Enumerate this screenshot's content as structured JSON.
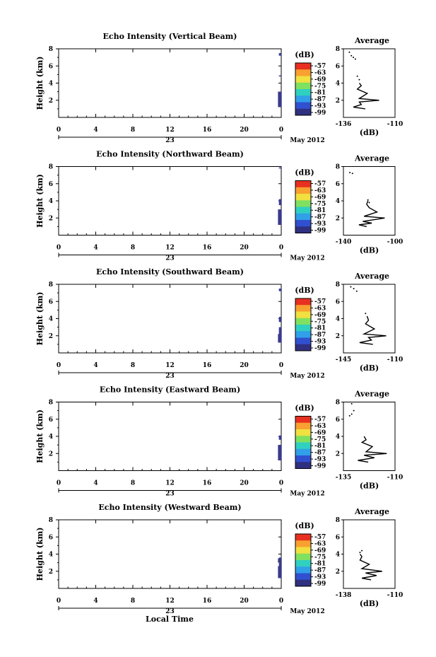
{
  "common": {
    "x_ticks": [
      "0",
      "4",
      "8",
      "12",
      "16",
      "20",
      "0"
    ],
    "y_ticks": [
      "2",
      "4",
      "6",
      "8"
    ],
    "date_day": "23",
    "month_year": "May 2012",
    "ylabel": "Height (km)",
    "xlabel": "Local Time",
    "avg_title": "Average",
    "db_unit": "(dB)",
    "colorbar_ticks": [
      "-57",
      "-63",
      "-69",
      "-75",
      "-81",
      "-87",
      "-93",
      "-99"
    ],
    "colorbar_colors": [
      "#e83020",
      "#f8a030",
      "#f0e040",
      "#80e060",
      "#30d0c0",
      "#30a0e8",
      "#3050d0",
      "#303080"
    ],
    "data_color": "#3a3a8c"
  },
  "chart_data": [
    {
      "type": "heatmap",
      "title": "Echo Intensity (Vertical Beam)",
      "ylim": [
        0,
        8
      ],
      "echo_columns": [
        {
          "time_h": 23.8,
          "segments": [
            [
              1.2,
              3.0
            ]
          ]
        },
        {
          "time_h": 23.9,
          "segments": [
            [
              1.2,
              3.0
            ],
            [
              7.2,
              7.5
            ],
            [
              4.8,
              4.9
            ]
          ]
        }
      ],
      "avg_xlim": [
        -136,
        -110
      ],
      "avg_xticks": [
        "-136",
        "-110"
      ],
      "avg_profile": [
        [
          -125,
          1.0
        ],
        [
          -131,
          1.2
        ],
        [
          -127,
          1.5
        ],
        [
          -128,
          1.8
        ],
        [
          -118,
          2.0
        ],
        [
          -128,
          2.2
        ],
        [
          -124,
          2.8
        ],
        [
          -129,
          3.3
        ],
        [
          -127,
          3.7
        ],
        [
          -128,
          4.0
        ]
      ],
      "avg_points": [
        [
          -133,
          7.6
        ],
        [
          -132,
          7.2
        ],
        [
          -131,
          7.0
        ],
        [
          -130,
          6.8
        ],
        [
          -129,
          4.8
        ],
        [
          -128,
          4.4
        ]
      ]
    },
    {
      "type": "heatmap",
      "title": "Echo Intensity (Northward Beam)",
      "ylim": [
        0,
        8
      ],
      "echo_columns": [
        {
          "time_h": 23.8,
          "segments": [
            [
              1.2,
              3.0
            ]
          ]
        },
        {
          "time_h": 23.9,
          "segments": [
            [
              1.2,
              3.0
            ],
            [
              3.5,
              4.2
            ],
            [
              7.8,
              7.9
            ]
          ]
        }
      ],
      "avg_xlim": [
        -140,
        -100
      ],
      "avg_xticks": [
        "-140",
        "-100"
      ],
      "avg_profile": [
        [
          -122,
          1.0
        ],
        [
          -128,
          1.2
        ],
        [
          -118,
          1.4
        ],
        [
          -125,
          1.6
        ],
        [
          -108,
          2.0
        ],
        [
          -124,
          2.2
        ],
        [
          -114,
          2.7
        ],
        [
          -120,
          3.2
        ],
        [
          -122,
          3.6
        ],
        [
          -121,
          4.0
        ]
      ],
      "avg_points": [
        [
          -135,
          7.3
        ],
        [
          -133,
          7.2
        ],
        [
          -121,
          4.1
        ],
        [
          -120,
          3.8
        ]
      ]
    },
    {
      "type": "heatmap",
      "title": "Echo Intensity (Southward Beam)",
      "ylim": [
        0,
        8
      ],
      "echo_columns": [
        {
          "time_h": 23.8,
          "segments": [
            [
              1.2,
              2.2
            ]
          ]
        },
        {
          "time_h": 23.9,
          "segments": [
            [
              1.2,
              3.0
            ],
            [
              3.6,
              4.2
            ],
            [
              7.2,
              7.5
            ]
          ]
        }
      ],
      "avg_xlim": [
        -145,
        -110
      ],
      "avg_xticks": [
        "-145",
        "-110"
      ],
      "avg_profile": [
        [
          -125,
          1.0
        ],
        [
          -134,
          1.2
        ],
        [
          -126,
          1.5
        ],
        [
          -128,
          1.8
        ],
        [
          -116,
          2.0
        ],
        [
          -131,
          2.2
        ],
        [
          -124,
          2.8
        ],
        [
          -130,
          3.4
        ],
        [
          -128,
          3.8
        ],
        [
          -129,
          4.3
        ]
      ],
      "avg_points": [
        [
          -140,
          7.7
        ],
        [
          -138,
          7.5
        ],
        [
          -136,
          7.2
        ],
        [
          -130,
          4.6
        ]
      ]
    },
    {
      "type": "heatmap",
      "title": "Echo Intensity (Eastward Beam)",
      "ylim": [
        0,
        8
      ],
      "echo_columns": [
        {
          "time_h": 23.8,
          "segments": [
            [
              1.2,
              3.0
            ]
          ]
        },
        {
          "time_h": 23.9,
          "segments": [
            [
              1.2,
              3.0
            ],
            [
              3.6,
              4.1
            ]
          ]
        }
      ],
      "avg_xlim": [
        -135,
        -110
      ],
      "avg_xticks": [
        "-135",
        "-110"
      ],
      "avg_profile": [
        [
          -123,
          1.0
        ],
        [
          -128,
          1.2
        ],
        [
          -120,
          1.5
        ],
        [
          -125,
          1.8
        ],
        [
          -114,
          2.0
        ],
        [
          -124,
          2.2
        ],
        [
          -121,
          2.8
        ],
        [
          -126,
          3.3
        ],
        [
          -124,
          3.6
        ],
        [
          -125,
          4.0
        ]
      ],
      "avg_points": [
        [
          -131,
          7.8
        ],
        [
          -130,
          7.0
        ],
        [
          -131,
          6.6
        ],
        [
          -132,
          6.4
        ]
      ]
    },
    {
      "type": "heatmap",
      "title": "Echo Intensity (Westward Beam)",
      "ylim": [
        0,
        8
      ],
      "echo_columns": [
        {
          "time_h": 23.8,
          "segments": [
            [
              1.2,
              2.6
            ],
            [
              3.0,
              3.5
            ]
          ]
        },
        {
          "time_h": 23.9,
          "segments": [
            [
              1.2,
              3.0
            ],
            [
              3.3,
              3.6
            ]
          ]
        }
      ],
      "avg_xlim": [
        -138,
        -110
      ],
      "avg_xticks": [
        "-138",
        "-110"
      ],
      "avg_profile": [
        [
          -123,
          1.0
        ],
        [
          -128,
          1.2
        ],
        [
          -120,
          1.5
        ],
        [
          -126,
          1.8
        ],
        [
          -117,
          2.0
        ],
        [
          -128,
          2.3
        ],
        [
          -124,
          2.8
        ],
        [
          -129,
          3.3
        ],
        [
          -128,
          3.7
        ],
        [
          -129,
          4.0
        ]
      ],
      "avg_points": [
        [
          -128,
          4.4
        ],
        [
          -129,
          4.2
        ]
      ]
    }
  ]
}
